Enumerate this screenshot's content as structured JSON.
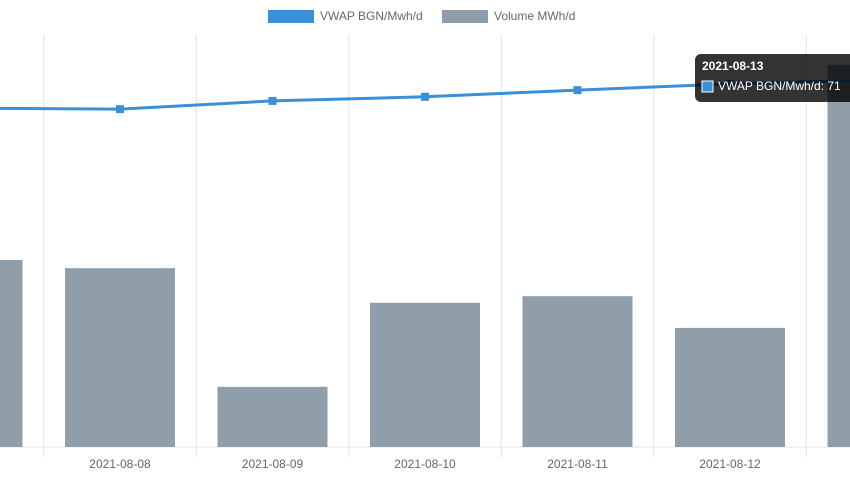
{
  "chart_data": {
    "type": "combo",
    "categories": [
      null,
      "2021-08-08",
      "2021-08-09",
      "2021-08-10",
      "2021-08-11",
      "2021-08-12",
      null
    ],
    "series": [
      {
        "name": "VWAP BGN/Mwh/d",
        "type": "line",
        "axis": "y2",
        "color": "#3a8fd9",
        "values": [
          65.8,
          65.6,
          67.2,
          68.0,
          69.3,
          70.5,
          71.3
        ]
      },
      {
        "name": "Volume MWh/d",
        "type": "bar",
        "color": "#8f9ea9",
        "values": [
          454,
          434,
          146,
          350,
          366,
          289,
          927
        ]
      }
    ],
    "ylim": [
      0,
      1000
    ],
    "y2lim": [
      0,
      80
    ],
    "grid": true,
    "legend": "top",
    "tooltip": {
      "title": "2021-08-13",
      "label": "VWAP BGN/Mwh/d: 71"
    }
  }
}
